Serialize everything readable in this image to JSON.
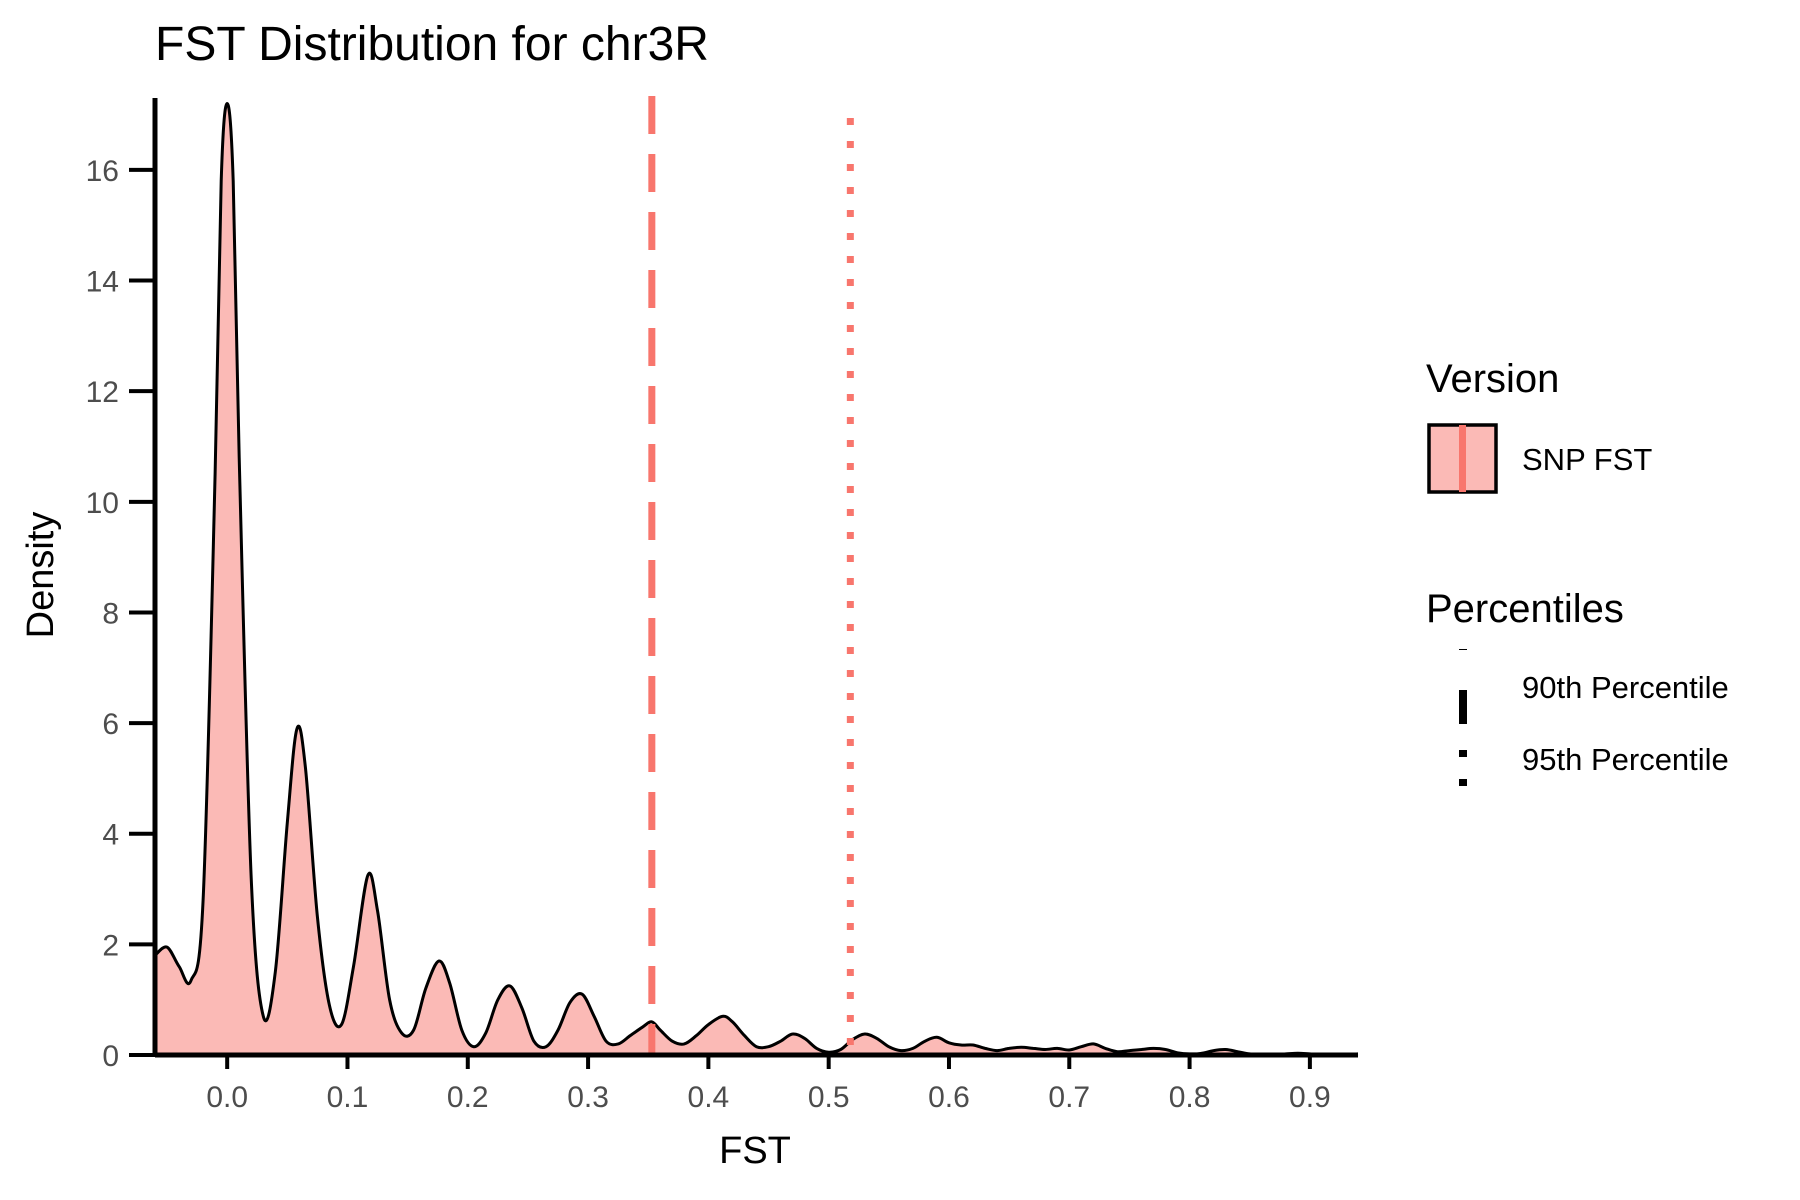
{
  "chart_data": {
    "type": "area",
    "title": "FST Distribution for chr3R",
    "xlabel": "FST",
    "ylabel": "Density",
    "xlim": [
      -0.06,
      0.94
    ],
    "ylim": [
      0,
      17.3
    ],
    "x_ticks": [
      "0.0",
      "0.1",
      "0.2",
      "0.3",
      "0.4",
      "0.5",
      "0.6",
      "0.7",
      "0.8",
      "0.9"
    ],
    "x_tick_values": [
      0.0,
      0.1,
      0.2,
      0.3,
      0.4,
      0.5,
      0.6,
      0.7,
      0.8,
      0.9
    ],
    "y_ticks": [
      "0",
      "2",
      "4",
      "6",
      "8",
      "10",
      "12",
      "14",
      "16"
    ],
    "y_tick_values": [
      0,
      2,
      4,
      6,
      8,
      10,
      12,
      14,
      16
    ],
    "grid": false,
    "fill_color": "#F8766D",
    "fill_opacity": 0.5,
    "line_color": "#000000",
    "series": [
      {
        "name": "SNP FST",
        "x": [
          -0.06,
          -0.05,
          -0.04,
          -0.03,
          -0.02,
          -0.01,
          -0.005,
          0.0,
          0.005,
          0.01,
          0.02,
          0.03,
          0.04,
          0.05,
          0.058,
          0.065,
          0.075,
          0.085,
          0.095,
          0.105,
          0.117,
          0.125,
          0.135,
          0.145,
          0.155,
          0.165,
          0.176,
          0.185,
          0.195,
          0.205,
          0.215,
          0.225,
          0.235,
          0.245,
          0.255,
          0.265,
          0.275,
          0.285,
          0.295,
          0.305,
          0.315,
          0.325,
          0.335,
          0.345,
          0.353,
          0.36,
          0.37,
          0.38,
          0.39,
          0.4,
          0.412,
          0.42,
          0.43,
          0.44,
          0.45,
          0.46,
          0.47,
          0.48,
          0.49,
          0.5,
          0.51,
          0.52,
          0.53,
          0.54,
          0.55,
          0.56,
          0.57,
          0.58,
          0.59,
          0.6,
          0.61,
          0.62,
          0.63,
          0.64,
          0.65,
          0.66,
          0.67,
          0.68,
          0.69,
          0.7,
          0.71,
          0.72,
          0.73,
          0.74,
          0.75,
          0.76,
          0.77,
          0.78,
          0.79,
          0.8,
          0.81,
          0.82,
          0.83,
          0.84,
          0.85,
          0.86,
          0.87,
          0.88,
          0.89,
          0.9,
          0.91,
          0.92,
          0.93,
          0.94
        ],
        "y": [
          1.8,
          1.95,
          1.6,
          1.35,
          2.8,
          10.5,
          15.8,
          17.2,
          15.8,
          10.8,
          3.2,
          0.7,
          1.5,
          4.2,
          5.9,
          5.2,
          2.5,
          0.9,
          0.55,
          1.6,
          3.25,
          2.6,
          1.0,
          0.4,
          0.45,
          1.2,
          1.7,
          1.3,
          0.45,
          0.15,
          0.4,
          1.0,
          1.25,
          0.85,
          0.25,
          0.15,
          0.45,
          0.95,
          1.1,
          0.7,
          0.25,
          0.2,
          0.35,
          0.5,
          0.6,
          0.45,
          0.25,
          0.2,
          0.35,
          0.55,
          0.7,
          0.6,
          0.35,
          0.15,
          0.15,
          0.25,
          0.38,
          0.3,
          0.12,
          0.05,
          0.1,
          0.28,
          0.38,
          0.3,
          0.15,
          0.08,
          0.12,
          0.25,
          0.32,
          0.22,
          0.18,
          0.18,
          0.12,
          0.08,
          0.12,
          0.14,
          0.12,
          0.1,
          0.12,
          0.09,
          0.15,
          0.2,
          0.12,
          0.06,
          0.08,
          0.1,
          0.12,
          0.1,
          0.04,
          0.02,
          0.03,
          0.08,
          0.1,
          0.06,
          0.02,
          0.01,
          0.01,
          0.02,
          0.03,
          0.02,
          0.01,
          0.01,
          0.01,
          0.02
        ]
      }
    ],
    "percentiles": [
      {
        "name": "90th Percentile",
        "value": 0.353,
        "style": "dashed"
      },
      {
        "name": "95th Percentile",
        "value": 0.518,
        "style": "dotted"
      }
    ],
    "legend": {
      "placement": "right",
      "groups": [
        {
          "title": "Version",
          "entries": [
            "SNP FST"
          ]
        },
        {
          "title": "Percentiles",
          "entries": [
            "90th Percentile",
            "95th Percentile"
          ]
        }
      ]
    }
  }
}
